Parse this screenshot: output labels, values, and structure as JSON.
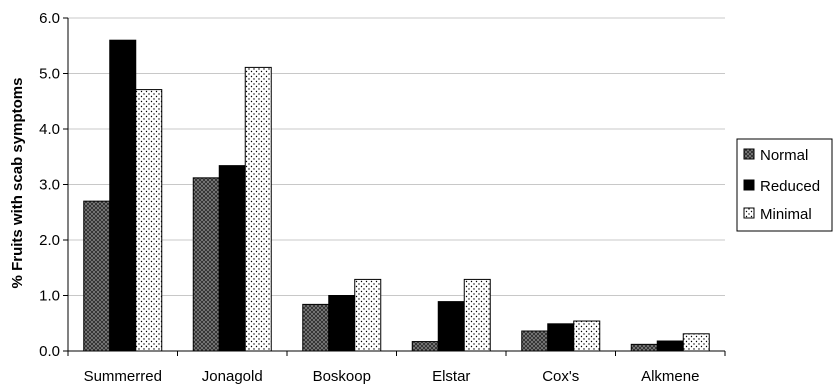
{
  "chart_data": {
    "type": "bar",
    "title": "",
    "xlabel": "",
    "ylabel": "% Fruits with scab symptoms",
    "ylim": [
      0,
      6
    ],
    "yticks": [
      "0.0",
      "1.0",
      "2.0",
      "3.0",
      "4.0",
      "5.0",
      "6.0"
    ],
    "ytick_values": [
      0,
      1,
      2,
      3,
      4,
      5,
      6
    ],
    "grid": true,
    "legend_position": "right",
    "categories": [
      "Summerred",
      "Jonagold",
      "Boskoop",
      "Elstar",
      "Cox's",
      "Alkmene"
    ],
    "series": [
      {
        "name": "Normal",
        "pattern": "crosshatch",
        "values": [
          2.7,
          3.12,
          0.84,
          0.17,
          0.36,
          0.12
        ]
      },
      {
        "name": "Reduced",
        "pattern": "solid",
        "values": [
          5.6,
          3.34,
          1.0,
          0.89,
          0.49,
          0.18
        ]
      },
      {
        "name": "Minimal",
        "pattern": "dots",
        "values": [
          4.71,
          5.11,
          1.29,
          1.29,
          0.54,
          0.31
        ]
      }
    ]
  },
  "colors": {
    "bar_outline": "#000000",
    "solid_fill": "#000000",
    "hatch_dark": "#333333",
    "dot_fill": "#000000",
    "grid": "#c8c8c8",
    "legend_border": "#000000"
  }
}
